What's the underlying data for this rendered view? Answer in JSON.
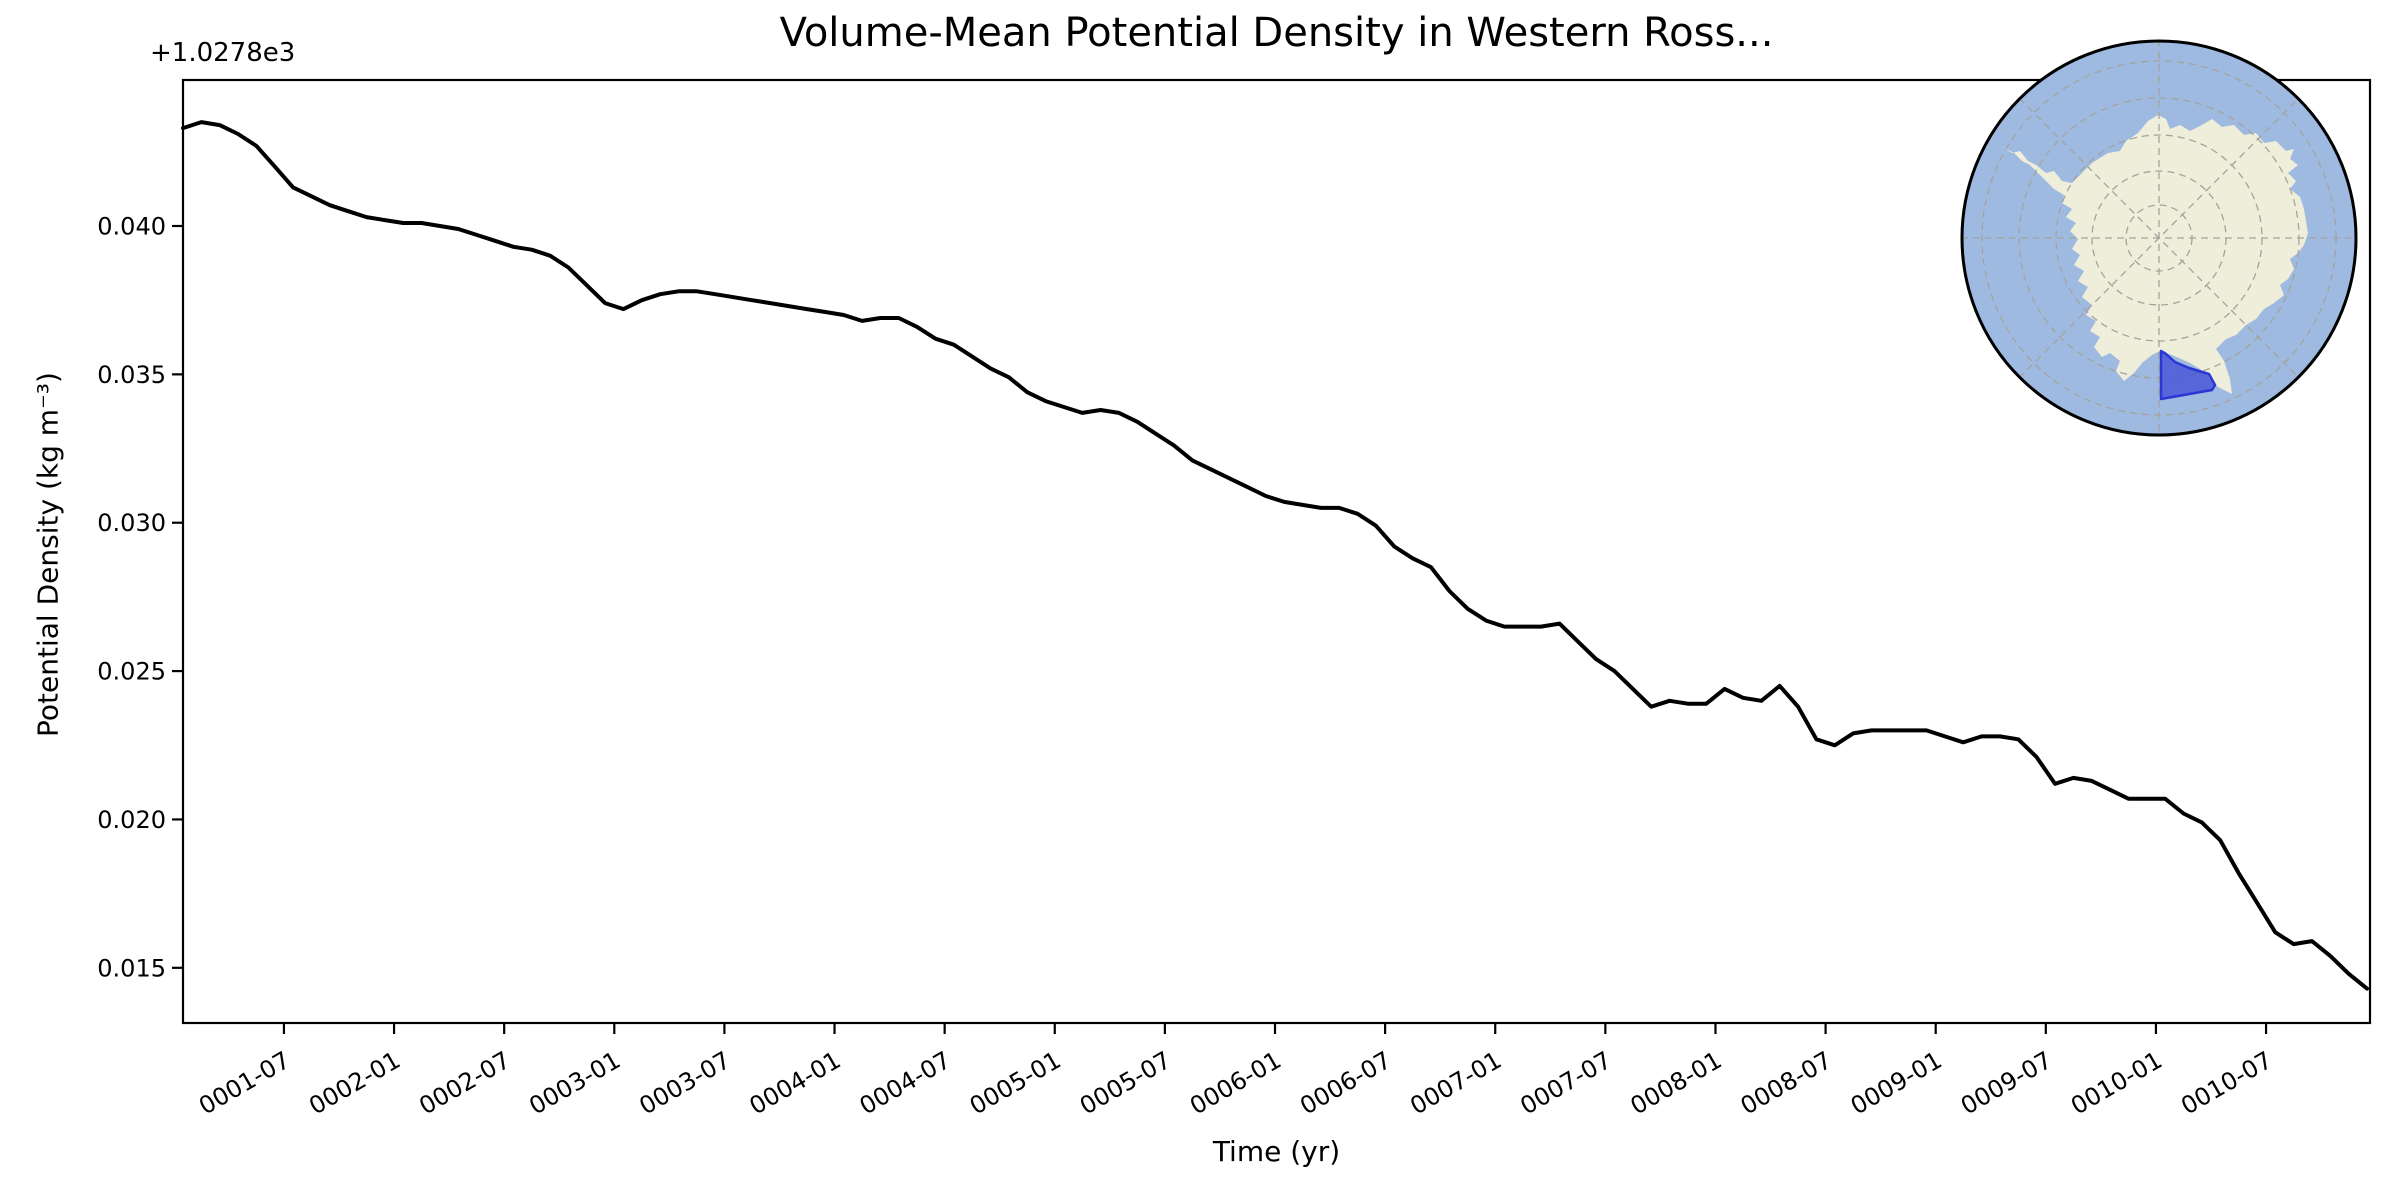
{
  "figure": {
    "background": "#ffffff"
  },
  "chart_data": {
    "type": "line",
    "title": "Volume-Mean Potential Density in Western Ross...",
    "xlabel": "Time (yr)",
    "ylabel": "Potential Density (kg m⁻³)",
    "y_offset_text": "+1.0278e3",
    "y_offset_value": 1027.8,
    "series_name": "volume-mean potential density",
    "line_color": "#000000",
    "line_width": 4,
    "grid": false,
    "ylim": [
      0.01314,
      0.04492
    ],
    "y_ticks": [
      0.015,
      0.02,
      0.025,
      0.03,
      0.035,
      0.04
    ],
    "y_tick_labels": [
      "0.015",
      "0.020",
      "0.025",
      "0.030",
      "0.035",
      "0.040"
    ],
    "x_tick_labels": [
      "0001-07",
      "0002-01",
      "0002-07",
      "0003-01",
      "0003-07",
      "0004-01",
      "0004-07",
      "0005-01",
      "0005-07",
      "0006-01",
      "0006-07",
      "0007-01",
      "0007-07",
      "0008-01",
      "0008-07",
      "0009-01",
      "0009-07",
      "0010-01",
      "0010-07"
    ],
    "x": [
      "0001-01",
      "0001-02",
      "0001-03",
      "0001-04",
      "0001-05",
      "0001-06",
      "0001-07",
      "0001-08",
      "0001-09",
      "0001-10",
      "0001-11",
      "0001-12",
      "0002-01",
      "0002-02",
      "0002-03",
      "0002-04",
      "0002-05",
      "0002-06",
      "0002-07",
      "0002-08",
      "0002-09",
      "0002-10",
      "0002-11",
      "0002-12",
      "0003-01",
      "0003-02",
      "0003-03",
      "0003-04",
      "0003-05",
      "0003-06",
      "0003-07",
      "0003-08",
      "0003-09",
      "0003-10",
      "0003-11",
      "0003-12",
      "0004-01",
      "0004-02",
      "0004-03",
      "0004-04",
      "0004-05",
      "0004-06",
      "0004-07",
      "0004-08",
      "0004-09",
      "0004-10",
      "0004-11",
      "0004-12",
      "0005-01",
      "0005-02",
      "0005-03",
      "0005-04",
      "0005-05",
      "0005-06",
      "0005-07",
      "0005-08",
      "0005-09",
      "0005-10",
      "0005-11",
      "0005-12",
      "0006-01",
      "0006-02",
      "0006-03",
      "0006-04",
      "0006-05",
      "0006-06",
      "0006-07",
      "0006-08",
      "0006-09",
      "0006-10",
      "0006-11",
      "0006-12",
      "0007-01",
      "0007-02",
      "0007-03",
      "0007-04",
      "0007-05",
      "0007-06",
      "0007-07",
      "0007-08",
      "0007-09",
      "0007-10",
      "0007-11",
      "0007-12",
      "0008-01",
      "0008-02",
      "0008-03",
      "0008-04",
      "0008-05",
      "0008-06",
      "0008-07",
      "0008-08",
      "0008-09",
      "0008-10",
      "0008-11",
      "0008-12",
      "0009-01",
      "0009-02",
      "0009-03",
      "0009-04",
      "0009-05",
      "0009-06",
      "0009-07",
      "0009-08",
      "0009-09",
      "0009-10",
      "0009-11",
      "0009-12",
      "0010-01",
      "0010-02",
      "0010-03",
      "0010-04",
      "0010-05",
      "0010-06",
      "0010-07",
      "0010-08",
      "0010-09",
      "0010-10",
      "0010-11",
      "0010-12"
    ],
    "values": [
      0.0433,
      0.0435,
      0.0434,
      0.0431,
      0.0427,
      0.042,
      0.0413,
      0.041,
      0.0407,
      0.0405,
      0.0403,
      0.0402,
      0.0401,
      0.0401,
      0.04,
      0.0399,
      0.0397,
      0.0395,
      0.0393,
      0.0392,
      0.039,
      0.0386,
      0.038,
      0.0374,
      0.0372,
      0.0375,
      0.0377,
      0.0378,
      0.0378,
      0.0377,
      0.0376,
      0.0375,
      0.0374,
      0.0373,
      0.0372,
      0.0371,
      0.037,
      0.0368,
      0.0369,
      0.0369,
      0.0366,
      0.0362,
      0.036,
      0.0356,
      0.0352,
      0.0349,
      0.0344,
      0.0341,
      0.0339,
      0.0337,
      0.0338,
      0.0337,
      0.0334,
      0.033,
      0.0326,
      0.0321,
      0.0318,
      0.0315,
      0.0312,
      0.0309,
      0.0307,
      0.0306,
      0.0305,
      0.0305,
      0.0303,
      0.0299,
      0.0292,
      0.0288,
      0.0285,
      0.0277,
      0.0271,
      0.0267,
      0.0265,
      0.0265,
      0.0265,
      0.0266,
      0.026,
      0.0254,
      0.025,
      0.0244,
      0.0238,
      0.024,
      0.0239,
      0.0239,
      0.0244,
      0.0241,
      0.024,
      0.0245,
      0.0238,
      0.0227,
      0.0225,
      0.0229,
      0.023,
      0.023,
      0.023,
      0.023,
      0.0228,
      0.0226,
      0.0228,
      0.0228,
      0.0227,
      0.0221,
      0.0212,
      0.0214,
      0.0213,
      0.021,
      0.0207,
      0.0207,
      0.0207,
      0.0202,
      0.0199,
      0.0193,
      0.0182,
      0.0172,
      0.0162,
      0.0158,
      0.0159,
      0.0154,
      0.0148,
      0.0143
    ]
  },
  "inset_map": {
    "description": "South polar view of Antarctica with highlighted Western Ross Sea region",
    "colors": {
      "ocean": "#9fbae0",
      "land": "#efeeda",
      "graticule": "#a3a39d",
      "border": "#000000",
      "highlight_fill": "#4552d8",
      "highlight_edge": "#2b36d4"
    }
  }
}
